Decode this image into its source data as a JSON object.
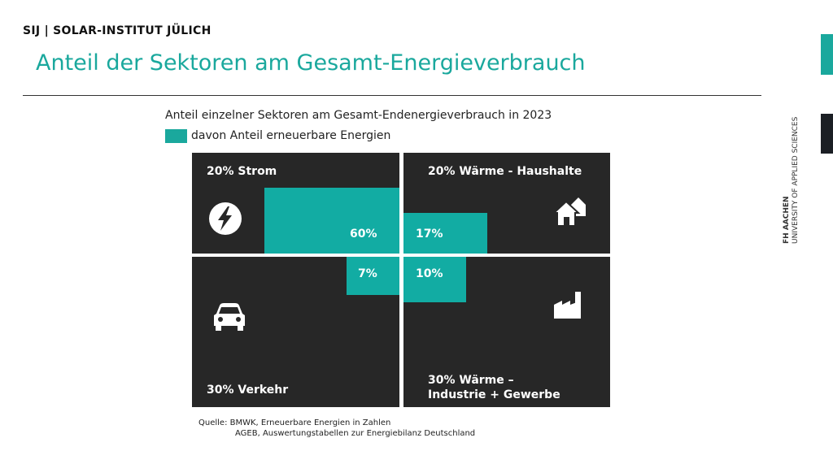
{
  "header": {
    "brand": "SIJ | SOLAR-INSTITUT JÜLICH",
    "title": "Anteil der Sektoren am Gesamt-Energieverbrauch"
  },
  "sidebar": {
    "line1": "FH AACHEN",
    "line2": "UNIVERSITY OF APPLIED SCIENCES",
    "accent_color": "#1aa89d"
  },
  "diagram": {
    "subtitle": "Anteil einzelner Sektoren am Gesamt-Endenergieverbrauch in 2023",
    "legend": "davon Anteil erneuerbare Energien",
    "panel_color": "#272727",
    "renewable_color": "#12aca3",
    "sectors": {
      "strom": {
        "label": "20% Strom",
        "share": 20,
        "renewable_label": "60%",
        "renewable": 60,
        "icon": "lightning-icon"
      },
      "waerme_haushalte": {
        "label": "20% Wärme - Haushalte",
        "share": 20,
        "renewable_label": "17%",
        "renewable": 17,
        "icon": "houses-icon"
      },
      "verkehr": {
        "label": "30% Verkehr",
        "share": 30,
        "renewable_label": "7%",
        "renewable": 7,
        "icon": "car-icon"
      },
      "waerme_industrie": {
        "label_line1": "30% Wärme –",
        "label_line2": "Industrie + Gewerbe",
        "share": 30,
        "renewable_label": "10%",
        "renewable": 10,
        "icon": "factory-icon"
      }
    }
  },
  "source": {
    "line1": "Quelle: BMWK, Erneuerbare Energien in Zahlen",
    "line2": "AGEB, Auswertungstabellen zur Energiebilanz Deutschland"
  }
}
